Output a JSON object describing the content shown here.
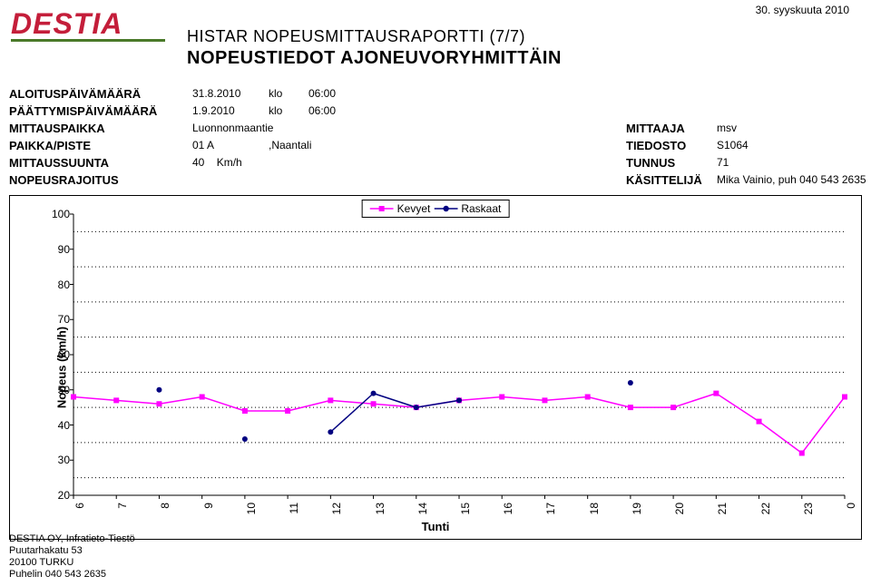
{
  "logo_text": "DESTIA",
  "date_top": "30. syyskuuta 2010",
  "title_line1": "HISTAR NOPEUSMITTAUSRAPORTTI (7/7)",
  "title_line2": "NOPEUSTIEDOT AJONEUVORYHMITTÄIN",
  "meta_left": {
    "labels": {
      "l1": "ALOITUSPÄIVÄMÄÄRÄ",
      "l2": "PÄÄTTYMISPÄIVÄMÄÄRÄ",
      "l3": "MITTAUSPAIKKA",
      "l4": "PAIKKA/PISTE",
      "l5": "MITTAUSSUUNTA",
      "l6": "NOPEUSRAJOITUS"
    },
    "values": {
      "v1": "31.8.2010",
      "v2": "1.9.2010",
      "v3": "Luonnonmaantie",
      "v4": "01 A",
      "v5": "",
      "v6": "40"
    },
    "klo_label": "klo",
    "klo1": "06:00",
    "klo2": "06:00",
    "v4_extra": ",Naantali",
    "v6_unit": "Km/h"
  },
  "meta_right": {
    "labels": {
      "r1": "MITTAAJA",
      "r2": "TIEDOSTO",
      "r3": "TUNNUS",
      "r4": "KÄSITTELIJÄ"
    },
    "values": {
      "rv1": "msv",
      "rv2": "S1064",
      "rv3": "71",
      "rv4": "Mika Vainio, puh 040 543 2635"
    }
  },
  "chart": {
    "type": "line",
    "x_categories": [
      "6",
      "7",
      "8",
      "9",
      "10",
      "11",
      "12",
      "13",
      "14",
      "15",
      "16",
      "17",
      "18",
      "19",
      "20",
      "21",
      "22",
      "23",
      "0"
    ],
    "xlabel": "Tunti",
    "ylabel": "Nopeus (km/h)",
    "ylim": [
      20,
      100
    ],
    "ytick_step": 10,
    "y_ticks": [
      20,
      30,
      40,
      50,
      60,
      70,
      80,
      90,
      100
    ],
    "grid_y": [
      25,
      35,
      45,
      55,
      65,
      75,
      85,
      95
    ],
    "grid_color": "#000000",
    "background_color": "#ffffff",
    "series": [
      {
        "name": "Kevyet",
        "legend_label": "Kevyet",
        "color": "#ff00ff",
        "marker": "square",
        "marker_size": 6,
        "line_width": 1.5,
        "values": [
          48,
          47,
          46,
          48,
          44,
          44,
          47,
          46,
          45,
          47,
          48,
          47,
          48,
          45,
          45,
          49,
          41,
          32,
          48
        ]
      },
      {
        "name": "Raskaat",
        "legend_label": "Raskaat",
        "color": "#000080",
        "marker": "circle",
        "marker_size": 6,
        "line_width": 1.5,
        "values": [
          null,
          null,
          50,
          null,
          36,
          null,
          38,
          49,
          45,
          47,
          null,
          null,
          null,
          52,
          null,
          null,
          null,
          null,
          null
        ]
      }
    ]
  },
  "footer": {
    "f1": "DESTIA OY, Infratieto-Tiestö",
    "f2": "Puutarhakatu 53",
    "f3": "20100 TURKU",
    "f4": "Puhelin  040 543 2635"
  }
}
